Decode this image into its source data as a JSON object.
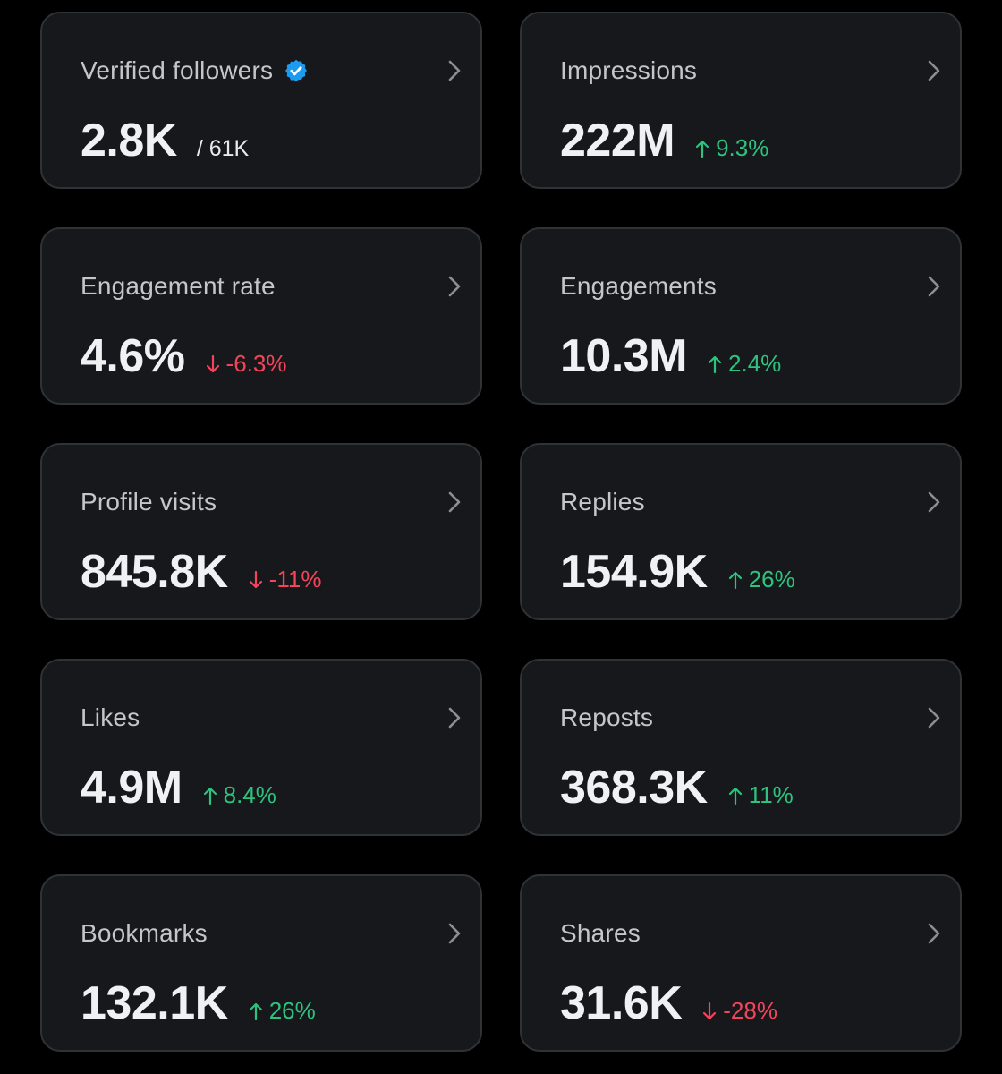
{
  "colors": {
    "background": "#000000",
    "card": "#16181c",
    "card_border": "#2f3336",
    "up": "#2ec27e",
    "down": "#f4445a",
    "verified": "#1d9bf0"
  },
  "cards": [
    {
      "label": "Verified followers",
      "value": "2.8K",
      "sub": "/ 61K",
      "delta": "",
      "direction": "none",
      "icon": "verified-badge-icon"
    },
    {
      "label": "Impressions",
      "value": "222M",
      "sub": "",
      "delta": "9.3%",
      "direction": "up"
    },
    {
      "label": "Engagement rate",
      "value": "4.6%",
      "sub": "",
      "delta": "-6.3%",
      "direction": "down"
    },
    {
      "label": "Engagements",
      "value": "10.3M",
      "sub": "",
      "delta": "2.4%",
      "direction": "up"
    },
    {
      "label": "Profile visits",
      "value": "845.8K",
      "sub": "",
      "delta": "-11%",
      "direction": "down"
    },
    {
      "label": "Replies",
      "value": "154.9K",
      "sub": "",
      "delta": "26%",
      "direction": "up"
    },
    {
      "label": "Likes",
      "value": "4.9M",
      "sub": "",
      "delta": "8.4%",
      "direction": "up"
    },
    {
      "label": "Reposts",
      "value": "368.3K",
      "sub": "",
      "delta": "11%",
      "direction": "up"
    },
    {
      "label": "Bookmarks",
      "value": "132.1K",
      "sub": "",
      "delta": "26%",
      "direction": "up"
    },
    {
      "label": "Shares",
      "value": "31.6K",
      "sub": "",
      "delta": "-28%",
      "direction": "down"
    }
  ]
}
